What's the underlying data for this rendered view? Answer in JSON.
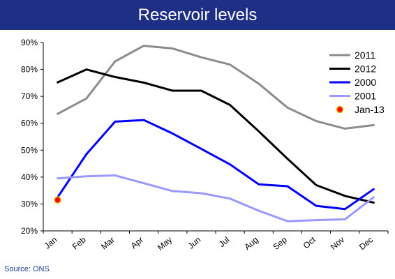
{
  "title": "Reservoir levels",
  "source": "Source: ONS",
  "colors": {
    "title_bar": "#1f2f86"
  },
  "chart_data": {
    "type": "line",
    "title": "Reservoir levels",
    "xlabel": "",
    "ylabel": "",
    "categories": [
      "Jan",
      "Feb",
      "Mar",
      "Apr",
      "May",
      "Jun",
      "Jul",
      "Aug",
      "Sep",
      "Oct",
      "Nov",
      "Dec"
    ],
    "ylim": [
      20,
      90
    ],
    "yticks": [
      20,
      30,
      40,
      50,
      60,
      70,
      80,
      90
    ],
    "ytick_labels": [
      "20%",
      "30%",
      "40%",
      "50%",
      "60%",
      "70%",
      "80%",
      "90%"
    ],
    "grid": false,
    "legend_position": "top-right",
    "series": [
      {
        "name": "2011",
        "color": "#8c8c8c",
        "values": [
          63.5,
          69.2,
          83,
          88.8,
          87.8,
          84.5,
          81.8,
          74.7,
          65.8,
          60.8,
          58,
          59.3
        ]
      },
      {
        "name": "2012",
        "color": "#000000",
        "values": [
          75.2,
          80,
          77.2,
          75.1,
          72.1,
          72.1,
          66.8,
          57,
          46.8,
          37,
          33,
          30.5
        ]
      },
      {
        "name": "2000",
        "color": "#0000ff",
        "values": [
          32.5,
          48.5,
          60.6,
          61.2,
          56.2,
          50.5,
          44.7,
          37.3,
          36.6,
          29.3,
          28.1,
          35.5
        ]
      },
      {
        "name": "2001",
        "color": "#9999ff",
        "values": [
          39.5,
          40.3,
          40.6,
          37.7,
          34.8,
          34,
          32,
          27.5,
          23.6,
          24,
          24.3,
          32.5
        ]
      }
    ],
    "markers": [
      {
        "name": "Jan-13",
        "category": "Jan",
        "value": 31.5,
        "color": "#ff0000",
        "edge_color": "#e6b800"
      }
    ]
  }
}
